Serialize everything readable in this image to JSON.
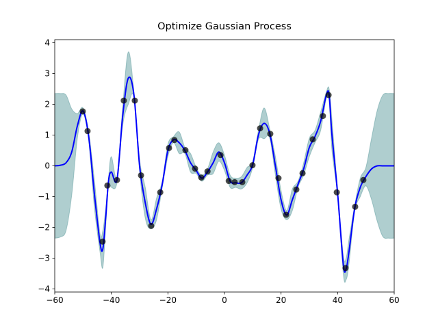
{
  "chart_data": {
    "type": "line",
    "title": "Optimize Gaussian Process",
    "xlim": [
      -60,
      60
    ],
    "ylim": [
      -4.1,
      4.1
    ],
    "xticks": [
      {
        "value": -60,
        "label": "−60"
      },
      {
        "value": -40,
        "label": "−40"
      },
      {
        "value": -20,
        "label": "−20"
      },
      0,
      20,
      40,
      60
    ],
    "yticks": [
      {
        "value": -4,
        "label": "−4"
      },
      {
        "value": -3,
        "label": "−3"
      },
      {
        "value": -2,
        "label": "−2"
      },
      {
        "value": -1,
        "label": "−1"
      },
      0,
      1,
      2,
      3,
      4
    ],
    "band": {
      "color": "#5f9ea0",
      "x": [
        -60,
        -58,
        -56,
        -54,
        -52,
        -50,
        -48,
        -46,
        -44,
        -43,
        -42,
        -41,
        -40,
        -38,
        -36,
        -34,
        -32,
        -30,
        -28,
        -26,
        -24,
        -22,
        -20,
        -18,
        -16,
        -14,
        -12,
        -10,
        -8,
        -6,
        -4,
        -2,
        0,
        2,
        4,
        6,
        8,
        10,
        12,
        14,
        16,
        18,
        20,
        22,
        24,
        26,
        28,
        30,
        32,
        34,
        36,
        37,
        38,
        40,
        42,
        43,
        44,
        46,
        48,
        50,
        52,
        54,
        56,
        58,
        60
      ],
      "upper": [
        2.35,
        2.35,
        2.3,
        1.85,
        1.7,
        1.88,
        1.1,
        -0.45,
        -2.2,
        -2.1,
        -1.4,
        -0.4,
        0.3,
        -0.35,
        1.9,
        3.7,
        2.4,
        0.2,
        -0.7,
        -1.75,
        -1.05,
        -0.5,
        0.7,
        0.95,
        1.1,
        0.6,
        0.4,
        -0.05,
        -0.3,
        -0.1,
        0.45,
        0.75,
        0.35,
        -0.3,
        -0.4,
        -0.35,
        -0.05,
        0.15,
        1.15,
        1.88,
        1.2,
        0.3,
        -0.8,
        -1.45,
        -0.75,
        -0.5,
        0.1,
        0.9,
        1.15,
        1.75,
        2.4,
        2.5,
        1.5,
        -0.8,
        -2.9,
        -3.0,
        -2.4,
        -1.3,
        -0.4,
        -0.05,
        0.9,
        1.8,
        2.3,
        2.35,
        2.35
      ],
      "lower": [
        -2.35,
        -2.31,
        -2.1,
        -0.95,
        0.9,
        1.68,
        0.8,
        -1.35,
        -2.8,
        -3.3,
        -2.0,
        -0.6,
        -0.7,
        -0.55,
        1.3,
        2.0,
        2.2,
        -0.2,
        -1.7,
        -2.05,
        -1.75,
        -0.7,
        0.3,
        0.75,
        0.4,
        0.4,
        -0.2,
        -0.25,
        -0.5,
        -0.3,
        -0.25,
        0.15,
        -0.15,
        -0.7,
        -0.7,
        -0.75,
        -0.55,
        -0.05,
        0.85,
        0.88,
        0.9,
        -0.3,
        -1.4,
        -1.75,
        -1.45,
        -0.7,
        -0.3,
        0.3,
        0.75,
        1.15,
        2.2,
        2.1,
        0.5,
        -1.0,
        -3.5,
        -3.7,
        -3.2,
        -1.5,
        -1.0,
        -0.65,
        -1.1,
        -1.8,
        -2.3,
        -2.35,
        -2.35
      ]
    },
    "line": {
      "color": "#0000ff",
      "x": [
        -60,
        -58,
        -56,
        -54,
        -52,
        -50,
        -48,
        -46,
        -44,
        -43,
        -42,
        -41,
        -40,
        -38,
        -36,
        -34,
        -32,
        -30,
        -28,
        -26,
        -24,
        -22,
        -20,
        -18,
        -16,
        -14,
        -12,
        -10,
        -8,
        -6,
        -4,
        -2,
        0,
        2,
        4,
        6,
        8,
        10,
        12,
        14,
        16,
        18,
        20,
        22,
        24,
        26,
        28,
        30,
        32,
        34,
        36,
        37,
        38,
        40,
        42,
        43,
        44,
        46,
        48,
        50,
        52,
        54,
        56,
        58,
        60
      ],
      "values": [
        0,
        0.02,
        0.1,
        0.45,
        1.3,
        1.78,
        0.95,
        -0.9,
        -2.5,
        -2.7,
        -1.7,
        -0.5,
        -0.2,
        -0.45,
        1.6,
        2.85,
        2.3,
        0,
        -1.2,
        -1.9,
        -1.4,
        -0.6,
        0.5,
        0.85,
        0.75,
        0.5,
        0.1,
        -0.15,
        -0.4,
        -0.2,
        0.1,
        0.45,
        0.1,
        -0.5,
        -0.55,
        -0.55,
        -0.3,
        0.05,
        1.0,
        1.38,
        1.05,
        0,
        -1.1,
        -1.6,
        -1.1,
        -0.6,
        -0.1,
        0.6,
        0.95,
        1.45,
        2.3,
        2.3,
        1.0,
        -0.9,
        -3.2,
        -3.35,
        -2.8,
        -1.4,
        -0.7,
        -0.35,
        -0.1,
        0,
        0,
        0,
        0
      ]
    },
    "scatter": {
      "color": "#000000",
      "x": [
        -50.1,
        -48.4,
        -43.1,
        -41.4,
        -38.0,
        -35.6,
        -31.7,
        -29.5,
        -25.9,
        -22.7,
        -19.6,
        -17.7,
        -13.8,
        -10.4,
        -8.2,
        -6.0,
        -1.4,
        1.5,
        3.6,
        6.3,
        9.9,
        12.6,
        16.2,
        19.1,
        21.8,
        25.4,
        27.6,
        31.2,
        34.8,
        36.8,
        39.7,
        42.8,
        46.2,
        49.1
      ],
      "y": [
        1.77,
        1.13,
        -2.46,
        -0.64,
        -0.46,
        2.12,
        2.12,
        -0.31,
        -1.95,
        -0.86,
        0.58,
        0.84,
        0.51,
        -0.09,
        -0.38,
        -0.18,
        0.35,
        -0.49,
        -0.53,
        -0.53,
        0.02,
        1.22,
        1.04,
        -0.4,
        -1.59,
        -0.77,
        -0.24,
        0.86,
        1.62,
        2.3,
        -0.86,
        -3.32,
        -1.33,
        -0.46
      ]
    }
  }
}
